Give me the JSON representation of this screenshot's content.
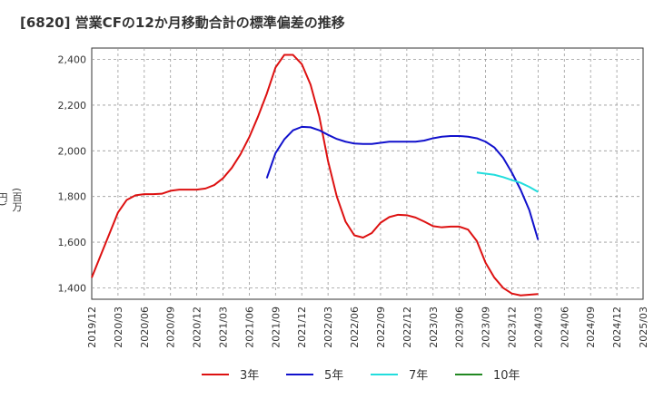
{
  "title": "[6820]  営業CFの12か月移動合計の標準偏差の推移",
  "chart_data": {
    "type": "line",
    "title": "[6820]  営業CFの12か月移動合計の標準偏差の推移",
    "ylabel": "(百万円)",
    "xlabel": "",
    "ylim": [
      1350,
      2450
    ],
    "yticks": [
      1400,
      1600,
      1800,
      2000,
      2200,
      2400
    ],
    "ytick_labels": [
      "1,400",
      "1,600",
      "1,800",
      "2,000",
      "2,200",
      "2,400"
    ],
    "xtick_labels": [
      "2019/12",
      "2020/03",
      "2020/06",
      "2020/09",
      "2020/12",
      "2021/03",
      "2021/06",
      "2021/09",
      "2021/12",
      "2022/03",
      "2022/06",
      "2022/09",
      "2022/12",
      "2023/03",
      "2023/06",
      "2023/09",
      "2023/12",
      "2024/03",
      "2024/06",
      "2024/09",
      "2024/12",
      "2025/03"
    ],
    "x_start": "2019/12",
    "grid": true,
    "legend_position": "bottom",
    "colors": {
      "3年": "#dd1111",
      "5年": "#1111cc",
      "7年": "#22dddd",
      "10年": "#228822"
    },
    "series": [
      {
        "name": "3年",
        "start": "2019/12",
        "values": [
          1445,
          1540,
          1635,
          1730,
          1785,
          1805,
          1810,
          1810,
          1812,
          1825,
          1830,
          1830,
          1830,
          1835,
          1850,
          1880,
          1925,
          1985,
          2060,
          2150,
          2250,
          2365,
          2420,
          2420,
          2380,
          2290,
          2150,
          1955,
          1800,
          1690,
          1630,
          1620,
          1640,
          1685,
          1710,
          1720,
          1718,
          1708,
          1690,
          1670,
          1665,
          1668,
          1668,
          1655,
          1605,
          1510,
          1445,
          1400,
          1375,
          1367,
          1370,
          1373
        ]
      },
      {
        "name": "5年",
        "start": "2021/08",
        "values": [
          1880,
          1990,
          2050,
          2090,
          2105,
          2103,
          2090,
          2070,
          2052,
          2040,
          2032,
          2030,
          2030,
          2035,
          2040,
          2040,
          2040,
          2040,
          2045,
          2055,
          2062,
          2065,
          2065,
          2062,
          2055,
          2040,
          2015,
          1970,
          1905,
          1830,
          1740,
          1610
        ]
      },
      {
        "name": "7年",
        "start": "2023/08",
        "values": [
          1905,
          1900,
          1895,
          1885,
          1872,
          1860,
          1842,
          1820
        ]
      },
      {
        "name": "10年",
        "start": "2023/08",
        "values": []
      }
    ]
  }
}
